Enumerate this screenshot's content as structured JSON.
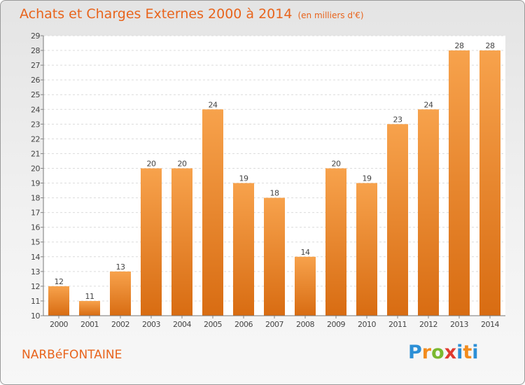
{
  "title": "Achats et Charges Externes 2000 à 2014",
  "subtitle": "(en milliers d'€)",
  "commune": "NARBéFONTAINE",
  "logo": {
    "letters": [
      "P",
      "r",
      "o",
      "x",
      "i",
      "t",
      "i"
    ],
    "colors": [
      "#2c8fd6",
      "#f28c1e",
      "#7ab830",
      "#e03a2f",
      "#2c8fd6",
      "#f28c1e",
      "#2c8fd6"
    ]
  },
  "chart_data": {
    "type": "bar",
    "title": "Achats et Charges Externes 2000 à 2014",
    "subtitle": "(en milliers d'€)",
    "categories": [
      "2000",
      "2001",
      "2002",
      "2003",
      "2004",
      "2005",
      "2006",
      "2007",
      "2008",
      "2009",
      "2010",
      "2011",
      "2012",
      "2013",
      "2014"
    ],
    "values": [
      12,
      11,
      13,
      20,
      20,
      24,
      19,
      18,
      14,
      20,
      19,
      23,
      24,
      28,
      28
    ],
    "ylim": [
      10,
      29
    ],
    "yticks": [
      10,
      11,
      12,
      13,
      14,
      15,
      16,
      17,
      18,
      19,
      20,
      21,
      22,
      23,
      24,
      25,
      26,
      27,
      28,
      29
    ],
    "grid": true,
    "bar_color": "#f08a2a",
    "xlabel": "",
    "ylabel": ""
  }
}
